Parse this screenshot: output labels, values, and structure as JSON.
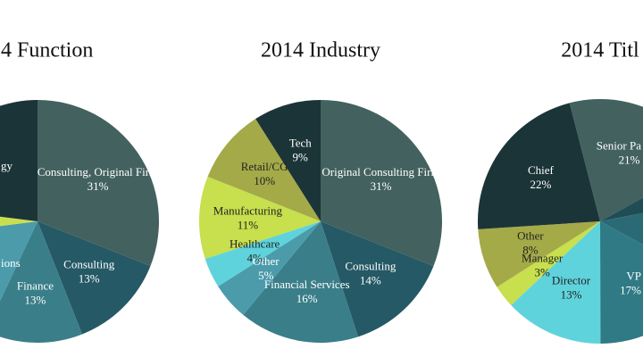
{
  "chart_data": [
    {
      "type": "pie",
      "title": "4 Function",
      "categories": [
        "Consulting, Original Firm",
        "Consulting",
        "Finance",
        "ions",
        null,
        "gy"
      ],
      "values": [
        31,
        13,
        13,
        16,
        4,
        23
      ],
      "value_labels": [
        "31%",
        "13%",
        "13%",
        null,
        null,
        null
      ],
      "colors": [
        "#43625f",
        "#245965",
        "#3a7e89",
        "#4b9bab",
        "#c8df4e",
        "#1b3437"
      ]
    },
    {
      "type": "pie",
      "title": "2014 Industry",
      "categories": [
        "Original Consulting Firm",
        "Consulting",
        "Financial Services",
        "Other",
        "Healthcare",
        "Manufacturing",
        "Retail/CG",
        "Tech"
      ],
      "values": [
        31,
        14,
        16,
        5,
        4,
        11,
        10,
        9
      ],
      "value_labels": [
        "31%",
        "14%",
        "16%",
        "5%",
        "4%",
        "11%",
        "10%",
        "9%"
      ],
      "colors": [
        "#43625f",
        "#245965",
        "#3a7e89",
        "#4b9bab",
        "#5fd3dc",
        "#c8df4e",
        "#a4aa48",
        "#1b3437"
      ]
    },
    {
      "type": "pie",
      "title": "2014 Titl",
      "categories": [
        "Senior Pa",
        null,
        null,
        "VP",
        "Director",
        "Manager",
        "Other",
        "Chief"
      ],
      "values": [
        21,
        5,
        11,
        17,
        13,
        3,
        8,
        22
      ],
      "value_labels": [
        "21%",
        null,
        null,
        "17%",
        "13%",
        "3%",
        "8%",
        "22%"
      ],
      "colors": [
        "#43625f",
        "#1f4c55",
        "#2a6a75",
        "#2f7a85",
        "#5fd3dc",
        "#c8df4e",
        "#a4aa48",
        "#1b3437"
      ]
    }
  ]
}
